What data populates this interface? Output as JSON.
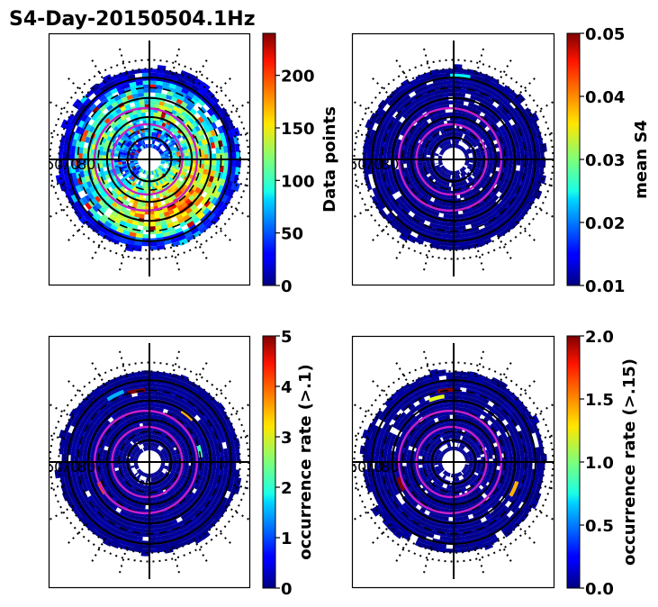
{
  "figure": {
    "title": "S4-Day-20150504.1Hz"
  },
  "chart_data": [
    {
      "type": "heatmap",
      "projection": "polar",
      "title": "",
      "colorbar_label": "Data points",
      "colormap": "jet",
      "vmin": 0,
      "vmax": 240,
      "colorbar_ticks": [
        0,
        50,
        100,
        150,
        200
      ],
      "colorbar_tick_labels": [
        "0",
        "50",
        "100",
        "150",
        "200"
      ],
      "latitude_labels": [
        "60",
        "70",
        "80"
      ],
      "pattern": "dense",
      "hotspots": []
    },
    {
      "type": "heatmap",
      "projection": "polar",
      "title": "",
      "colorbar_label": "mean S4",
      "colormap": "jet",
      "vmin": 0.01,
      "vmax": 0.05,
      "colorbar_ticks": [
        0.01,
        0.02,
        0.03,
        0.04,
        0.05
      ],
      "colorbar_tick_labels": [
        "0.01",
        "0.02",
        "0.03",
        "0.04",
        "0.05"
      ],
      "latitude_labels": [
        "60",
        "70",
        "80"
      ],
      "pattern": "low",
      "hotspots": [
        {
          "mlt_hours": 0.3,
          "colatitude_deg": 28,
          "value": 0.025
        }
      ]
    },
    {
      "type": "heatmap",
      "projection": "polar",
      "title": "",
      "colorbar_label": "occurrence rate (>.1)",
      "colormap": "jet",
      "vmin": 0,
      "vmax": 5,
      "colorbar_ticks": [
        0,
        1,
        2,
        3,
        4,
        5
      ],
      "colorbar_tick_labels": [
        "0",
        "1",
        "2",
        "3",
        "4",
        "5"
      ],
      "latitude_labels": [
        "60",
        "70",
        "80"
      ],
      "pattern": "low",
      "hotspots": [
        {
          "mlt_hours": 23.3,
          "colatitude_deg": 24,
          "value": 5
        },
        {
          "mlt_hours": 22.2,
          "colatitude_deg": 25,
          "value": 1.5
        },
        {
          "mlt_hours": 2.6,
          "colatitude_deg": 20,
          "value": 3.5
        },
        {
          "mlt_hours": 5.2,
          "colatitude_deg": 17,
          "value": 2.2
        },
        {
          "mlt_hours": 16.1,
          "colatitude_deg": 18,
          "value": 4.0
        }
      ]
    },
    {
      "type": "heatmap",
      "projection": "polar",
      "title": "",
      "colorbar_label": "occurrence rate (>.15)",
      "colormap": "jet",
      "vmin": 0,
      "vmax": 2,
      "colorbar_ticks": [
        0,
        0.5,
        1.0,
        1.5,
        2.0
      ],
      "colorbar_tick_labels": [
        "0.0",
        "0.5",
        "1.0",
        "1.5",
        "2.0"
      ],
      "latitude_labels": [
        "60",
        "70",
        "80"
      ],
      "pattern": "low",
      "hotspots": [
        {
          "mlt_hours": 23.6,
          "colatitude_deg": 24,
          "value": 2.0
        },
        {
          "mlt_hours": 23.0,
          "colatitude_deg": 22,
          "value": 1.2
        },
        {
          "mlt_hours": 16.5,
          "colatitude_deg": 19,
          "value": 2.0
        },
        {
          "mlt_hours": 7.6,
          "colatitude_deg": 22,
          "value": 1.4
        }
      ]
    }
  ]
}
